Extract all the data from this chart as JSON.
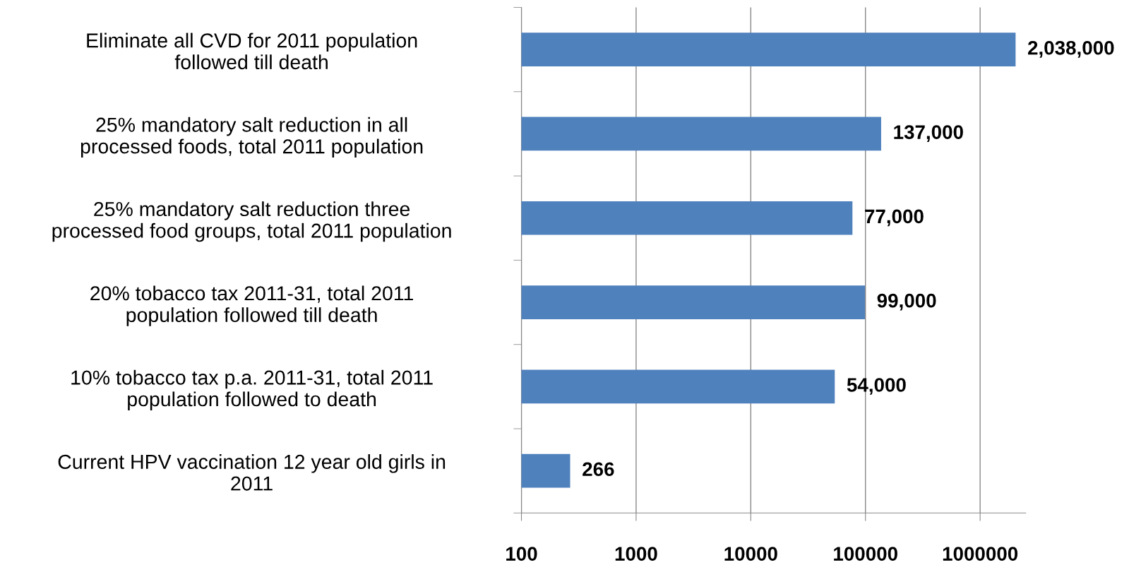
{
  "chart_data": {
    "type": "bar",
    "orientation": "horizontal",
    "log": "x",
    "categories": [
      "Eliminate all CVD for 2011 population\nfollowed till death",
      "25% mandatory salt reduction in all\nprocessed foods, total 2011 population",
      "25% mandatory salt reduction three\nprocessed food groups, total 2011 population",
      "20% tobacco tax 2011-31, total 2011\npopulation followed till death",
      "10% tobacco tax p.a. 2011-31, total 2011\npopulation followed to death",
      "Current HPV vaccination 12 year old girls in\n2011"
    ],
    "values": [
      2038000,
      137000,
      77000,
      99000,
      54000,
      266
    ],
    "value_labels": [
      "2,038,000",
      "137,000",
      "77,000",
      "99,000",
      "54,000",
      "266"
    ],
    "color": "#4f81bd",
    "xlim": [
      100,
      2500000
    ],
    "xticks": [
      100,
      1000,
      10000,
      100000,
      1000000
    ],
    "grid": "x",
    "legend": false
  }
}
